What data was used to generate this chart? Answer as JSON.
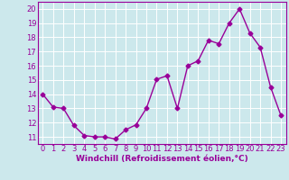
{
  "x": [
    0,
    1,
    2,
    3,
    4,
    5,
    6,
    7,
    8,
    9,
    10,
    11,
    12,
    13,
    14,
    15,
    16,
    17,
    18,
    19,
    20,
    21,
    22,
    23
  ],
  "y": [
    14.0,
    13.1,
    13.0,
    11.8,
    11.1,
    11.0,
    11.0,
    10.85,
    11.5,
    11.85,
    13.0,
    15.05,
    15.3,
    13.0,
    16.0,
    16.35,
    17.8,
    17.55,
    19.0,
    20.0,
    18.3,
    17.3,
    14.5,
    12.5
  ],
  "line_color": "#990099",
  "marker": "D",
  "marker_size": 2.5,
  "background_color": "#cce8ec",
  "grid_color": "#b0d8e0",
  "xlabel": "Windchill (Refroidissement éolien,°C)",
  "ylabel": "",
  "title": "",
  "ylim": [
    10.5,
    20.5
  ],
  "yticks": [
    11,
    12,
    13,
    14,
    15,
    16,
    17,
    18,
    19,
    20
  ],
  "xticks": [
    0,
    1,
    2,
    3,
    4,
    5,
    6,
    7,
    8,
    9,
    10,
    11,
    12,
    13,
    14,
    15,
    16,
    17,
    18,
    19,
    20,
    21,
    22,
    23
  ],
  "xlim": [
    -0.5,
    23.5
  ],
  "xlabel_fontsize": 6.5,
  "tick_fontsize": 6,
  "line_width": 1.0
}
